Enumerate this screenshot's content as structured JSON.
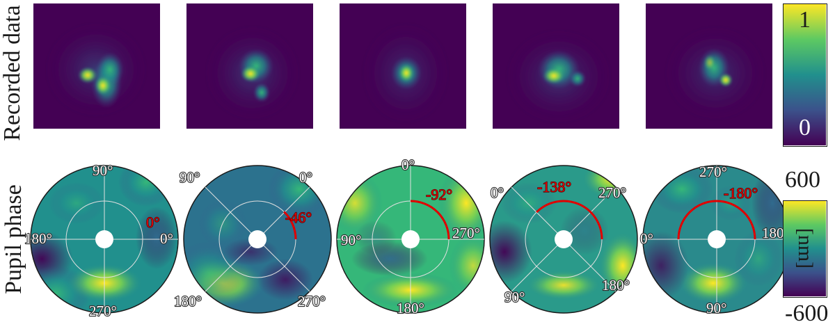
{
  "row_labels": {
    "top": "Recorded data",
    "bottom": "Pupil phase"
  },
  "colors": {
    "background": "#440154",
    "mid": "#21908d",
    "high": "#fde725",
    "annotation": "#e00000"
  },
  "recorded_data": [
    {
      "id": "psf-1"
    },
    {
      "id": "psf-2"
    },
    {
      "id": "psf-3"
    },
    {
      "id": "psf-4"
    },
    {
      "id": "psf-5"
    }
  ],
  "pupil_phase": [
    {
      "rotation": "0°",
      "labels": [
        "90°",
        "180°",
        "0°",
        "270°"
      ]
    },
    {
      "rotation": "-46°",
      "labels": [
        "90°",
        "0°",
        "180°",
        "270°"
      ]
    },
    {
      "rotation": "-92°",
      "labels": [
        "0°",
        "90°",
        "270°",
        "180°"
      ]
    },
    {
      "rotation": "-138°",
      "labels": [
        "0°",
        "270°",
        "90°",
        "180°"
      ]
    },
    {
      "rotation": "-180°",
      "labels": [
        "270°",
        "0°",
        "180°",
        "90°"
      ]
    }
  ],
  "colorbar_top": {
    "max": "1",
    "min": "0"
  },
  "colorbar_bottom": {
    "max": "600",
    "min": "-600",
    "unit": "[nm]"
  }
}
